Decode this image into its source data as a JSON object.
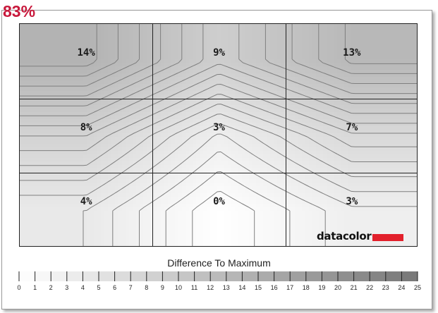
{
  "headline": "83%",
  "logo": {
    "text": "datacolor",
    "bar_color": "#e2202b"
  },
  "chart_data": {
    "type": "heatmap",
    "title": "",
    "legend_title": "Difference To Maximum",
    "rows": 3,
    "cols": 3,
    "cells": [
      [
        "14%",
        "9%",
        "13%"
      ],
      [
        "8%",
        "3%",
        "7%"
      ],
      [
        "4%",
        "0%",
        "3%"
      ]
    ],
    "values": [
      [
        14,
        9,
        13
      ],
      [
        8,
        3,
        7
      ],
      [
        4,
        0,
        3
      ]
    ],
    "scale_min": 0,
    "scale_max": 25,
    "scale_ticks": [
      "0",
      "1",
      "2",
      "3",
      "4",
      "5",
      "6",
      "7",
      "8",
      "9",
      "10",
      "11",
      "12",
      "13",
      "14",
      "15",
      "16",
      "17",
      "18",
      "19",
      "20",
      "21",
      "22",
      "23",
      "24",
      "25"
    ],
    "color_low": "#ffffff",
    "color_high": "#777777",
    "contour_color": "#7f7f7f",
    "grid_color": "#222222"
  }
}
